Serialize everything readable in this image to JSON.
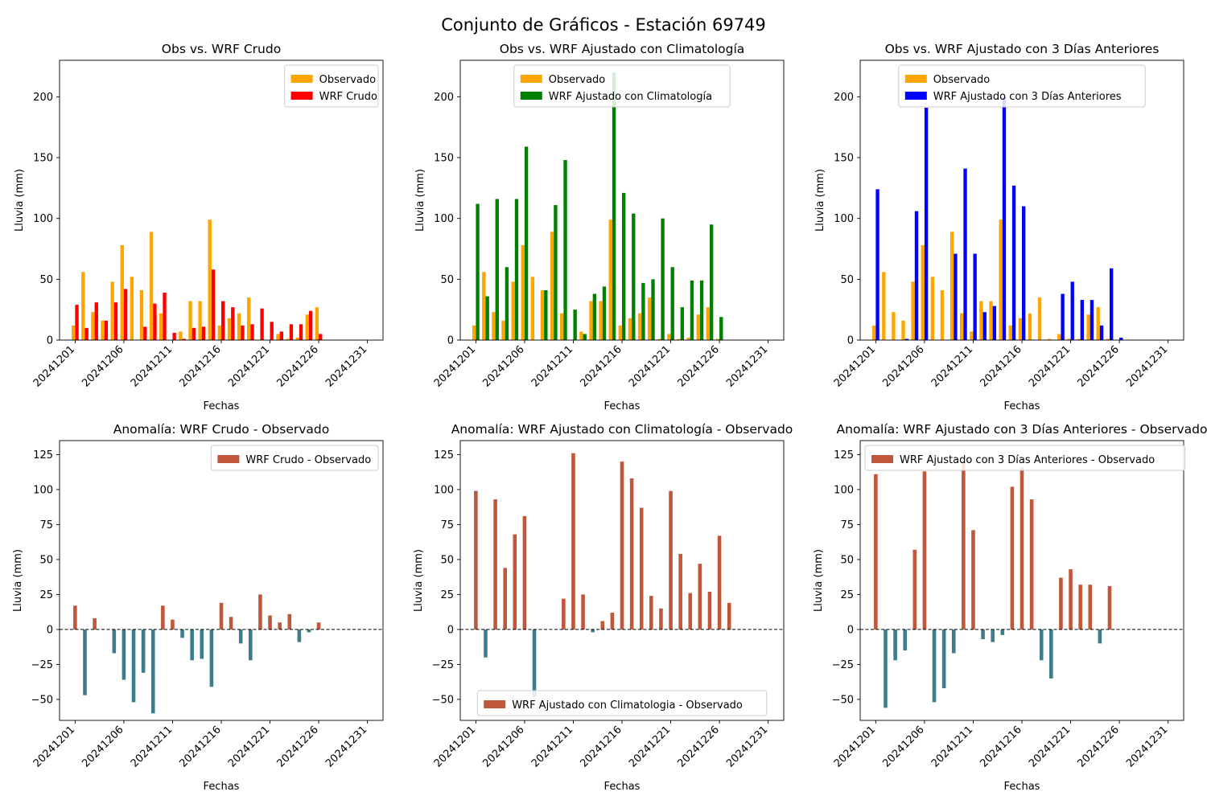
{
  "figure_title": "Conjunto de Gráficos - Estación 69749",
  "colors": {
    "observed": "#FFA500",
    "raw": "#FF0000",
    "clim": "#008000",
    "prev3": "#0000FF",
    "anom_pos": "#C1573A",
    "anom_neg": "#3D7D8B",
    "zero_line": "#000000"
  },
  "chart_data": [
    {
      "type": "bar",
      "title": "Obs vs. WRF Crudo",
      "xlabel": "Fechas",
      "ylabel": "Lluvia (mm)",
      "ylim": [
        0,
        230
      ],
      "yticks": [
        0,
        50,
        100,
        150,
        200
      ],
      "legend": "top-right",
      "x": [
        1,
        2,
        3,
        4,
        5,
        6,
        7,
        8,
        9,
        10,
        11,
        12,
        13,
        14,
        15,
        16,
        17,
        18,
        19,
        20,
        21,
        22,
        23,
        24,
        25,
        26,
        27,
        28,
        29,
        30,
        31
      ],
      "xtick_values": [
        1,
        6,
        11,
        16,
        21,
        26,
        31
      ],
      "xtick_labels": [
        "20241201",
        "20241206",
        "20241211",
        "20241216",
        "20241221",
        "20241226",
        "20241231"
      ],
      "series": [
        {
          "name": "Observado",
          "color_key": "observed",
          "values": [
            12,
            56,
            23,
            16,
            48,
            78,
            52,
            41,
            89,
            22,
            0,
            7,
            32,
            32,
            99,
            12,
            18,
            22,
            35,
            0,
            0,
            5,
            1,
            2,
            21,
            27,
            0,
            0,
            0,
            0,
            0
          ]
        },
        {
          "name": "WRF Crudo",
          "color_key": "raw",
          "values": [
            29,
            10,
            31,
            16,
            31,
            42,
            0,
            11,
            30,
            39,
            6,
            1,
            10,
            11,
            58,
            32,
            27,
            12,
            13,
            26,
            15,
            7,
            13,
            13,
            24,
            5,
            0,
            0,
            0,
            0,
            0
          ]
        }
      ]
    },
    {
      "type": "bar",
      "title": "Obs vs. WRF Ajustado con Climatología",
      "xlabel": "Fechas",
      "ylabel": "Lluvia (mm)",
      "ylim": [
        0,
        230
      ],
      "yticks": [
        0,
        50,
        100,
        150,
        200
      ],
      "legend": "top-center",
      "x": [
        1,
        2,
        3,
        4,
        5,
        6,
        7,
        8,
        9,
        10,
        11,
        12,
        13,
        14,
        15,
        16,
        17,
        18,
        19,
        20,
        21,
        22,
        23,
        24,
        25,
        26,
        27,
        28,
        29,
        30,
        31
      ],
      "xtick_values": [
        1,
        6,
        11,
        16,
        21,
        26,
        31
      ],
      "xtick_labels": [
        "20241201",
        "20241206",
        "20241211",
        "20241216",
        "20241221",
        "20241226",
        "20241231"
      ],
      "series": [
        {
          "name": "Observado",
          "color_key": "observed",
          "values": [
            12,
            56,
            23,
            16,
            48,
            78,
            52,
            41,
            89,
            22,
            0,
            7,
            32,
            32,
            99,
            12,
            18,
            22,
            35,
            1,
            5,
            1,
            2,
            21,
            27,
            1,
            0,
            0,
            0,
            0,
            0
          ]
        },
        {
          "name": "WRF Ajustado con Climatología",
          "color_key": "clim",
          "values": [
            112,
            36,
            116,
            60,
            116,
            159,
            0,
            41,
            111,
            148,
            25,
            5,
            38,
            44,
            220,
            121,
            104,
            47,
            50,
            100,
            60,
            27,
            49,
            49,
            95,
            19,
            0,
            0,
            0,
            0,
            0
          ]
        }
      ]
    },
    {
      "type": "bar",
      "title": "Obs vs. WRF Ajustado con 3 Días Anteriores",
      "xlabel": "Fechas",
      "ylabel": "Lluvia (mm)",
      "ylim": [
        0,
        230
      ],
      "yticks": [
        0,
        50,
        100,
        150,
        200
      ],
      "legend": "top-center",
      "x": [
        1,
        2,
        3,
        4,
        5,
        6,
        7,
        8,
        9,
        10,
        11,
        12,
        13,
        14,
        15,
        16,
        17,
        18,
        19,
        20,
        21,
        22,
        23,
        24,
        25,
        26,
        27,
        28,
        29,
        30,
        31
      ],
      "xtick_values": [
        1,
        6,
        11,
        16,
        21,
        26,
        31
      ],
      "xtick_labels": [
        "20241201",
        "20241206",
        "20241211",
        "20241216",
        "20241221",
        "20241226",
        "20241231"
      ],
      "series": [
        {
          "name": "Observado",
          "color_key": "observed",
          "values": [
            12,
            56,
            23,
            16,
            48,
            78,
            52,
            41,
            89,
            22,
            7,
            32,
            32,
            99,
            12,
            18,
            22,
            35,
            1,
            5,
            1,
            1,
            21,
            27,
            1,
            0,
            0,
            0,
            0,
            0,
            0
          ]
        },
        {
          "name": "WRF Ajustado con 3 Días Anteriores",
          "color_key": "prev3",
          "values": [
            124,
            0,
            0,
            1,
            106,
            191,
            0,
            0,
            71,
            141,
            71,
            23,
            28,
            200,
            127,
            110,
            0,
            0,
            0,
            38,
            48,
            33,
            33,
            12,
            59,
            2,
            0,
            0,
            0,
            0,
            0
          ]
        }
      ]
    },
    {
      "type": "bar",
      "title": "Anomalía: WRF Crudo - Observado",
      "xlabel": "Fechas",
      "ylabel": "Lluvia (mm)",
      "ylim": [
        -65,
        135
      ],
      "yticks": [
        -50,
        -25,
        0,
        25,
        50,
        75,
        100,
        125
      ],
      "legend": "top-right",
      "x": [
        1,
        2,
        3,
        4,
        5,
        6,
        7,
        8,
        9,
        10,
        11,
        12,
        13,
        14,
        15,
        16,
        17,
        18,
        19,
        20,
        21,
        22,
        23,
        24,
        25,
        26,
        27,
        28,
        29,
        30,
        31
      ],
      "xtick_values": [
        1,
        6,
        11,
        16,
        21,
        26,
        31
      ],
      "xtick_labels": [
        "20241201",
        "20241206",
        "20241211",
        "20241216",
        "20241221",
        "20241226",
        "20241231"
      ],
      "series": [
        {
          "name": "WRF Crudo - Observado",
          "values": [
            17,
            -47,
            8,
            0,
            -17,
            -36,
            -52,
            -31,
            -60,
            17,
            7,
            -6,
            -22,
            -21,
            -41,
            19,
            9,
            -10,
            -22,
            25,
            10,
            5,
            11,
            -9,
            -2,
            5,
            0,
            0,
            0,
            0,
            0
          ]
        }
      ]
    },
    {
      "type": "bar",
      "title": "Anomalía: WRF Ajustado con Climatología - Observado",
      "xlabel": "Fechas",
      "ylabel": "Lluvia (mm)",
      "ylim": [
        -65,
        135
      ],
      "yticks": [
        -50,
        -25,
        0,
        25,
        50,
        75,
        100,
        125
      ],
      "legend": "bottom-center",
      "x": [
        1,
        2,
        3,
        4,
        5,
        6,
        7,
        8,
        9,
        10,
        11,
        12,
        13,
        14,
        15,
        16,
        17,
        18,
        19,
        20,
        21,
        22,
        23,
        24,
        25,
        26,
        27,
        28,
        29,
        30,
        31
      ],
      "xtick_values": [
        1,
        6,
        11,
        16,
        21,
        26,
        31
      ],
      "xtick_labels": [
        "20241201",
        "20241206",
        "20241211",
        "20241216",
        "20241221",
        "20241226",
        "20241231"
      ],
      "series": [
        {
          "name": "WRF Ajustado con Climatologia - Observado",
          "values": [
            99,
            -20,
            93,
            44,
            68,
            81,
            -48,
            0,
            0,
            22,
            126,
            25,
            -2,
            6,
            12,
            120,
            108,
            87,
            24,
            15,
            99,
            54,
            26,
            47,
            27,
            67,
            19,
            0,
            0,
            0,
            0
          ]
        }
      ]
    },
    {
      "type": "bar",
      "title": "Anomalía: WRF Ajustado con 3 Días Anteriores - Observado",
      "xlabel": "Fechas",
      "ylabel": "Lluvia (mm)",
      "ylim": [
        -65,
        135
      ],
      "yticks": [
        -50,
        -25,
        0,
        25,
        50,
        75,
        100,
        125
      ],
      "legend": "top-left",
      "x": [
        1,
        2,
        3,
        4,
        5,
        6,
        7,
        8,
        9,
        10,
        11,
        12,
        13,
        14,
        15,
        16,
        17,
        18,
        19,
        20,
        21,
        22,
        23,
        24,
        25,
        26,
        27,
        28,
        29,
        30,
        31
      ],
      "xtick_values": [
        1,
        6,
        11,
        16,
        21,
        26,
        31
      ],
      "xtick_labels": [
        "20241201",
        "20241206",
        "20241211",
        "20241216",
        "20241221",
        "20241226",
        "20241231"
      ],
      "series": [
        {
          "name": "WRF Ajustado con 3 Días Anteriores - Observado",
          "values": [
            111,
            -56,
            -22,
            -15,
            57,
            113,
            -52,
            -42,
            -17,
            120,
            71,
            -7,
            -9,
            -4,
            102,
            116,
            93,
            -22,
            -35,
            37,
            43,
            32,
            32,
            -10,
            31,
            0,
            0,
            0,
            0,
            0,
            0
          ]
        }
      ]
    }
  ]
}
